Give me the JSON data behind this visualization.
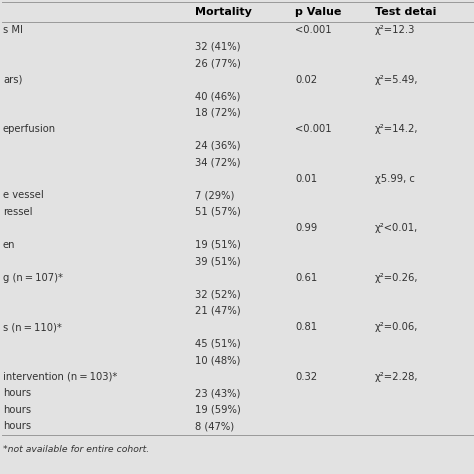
{
  "bg_color": "#d8d8d8",
  "table_bg": "#e2e2e2",
  "header_text_color": "#000000",
  "body_text_color": "#333333",
  "col1_header": "Mortality",
  "col2_header": "p Value",
  "col3_header": "Test detai",
  "rows": [
    {
      "left": "s MI",
      "mortality": "",
      "pvalue": "<0.001",
      "test": "χ²=12.3"
    },
    {
      "left": "",
      "mortality": "32 (41%)",
      "pvalue": "",
      "test": ""
    },
    {
      "left": "",
      "mortality": "26 (77%)",
      "pvalue": "",
      "test": ""
    },
    {
      "left": "ars)",
      "mortality": "",
      "pvalue": "0.02",
      "test": "χ²=5.49,"
    },
    {
      "left": "",
      "mortality": "40 (46%)",
      "pvalue": "",
      "test": ""
    },
    {
      "left": "",
      "mortality": "18 (72%)",
      "pvalue": "",
      "test": ""
    },
    {
      "left": "eperfusion",
      "mortality": "",
      "pvalue": "<0.001",
      "test": "χ²=14.2,"
    },
    {
      "left": "",
      "mortality": "24 (36%)",
      "pvalue": "",
      "test": ""
    },
    {
      "left": "",
      "mortality": "34 (72%)",
      "pvalue": "",
      "test": ""
    },
    {
      "left": "",
      "mortality": "",
      "pvalue": "0.01",
      "test": "χ5.99, c"
    },
    {
      "left": "e vessel",
      "mortality": "7 (29%)",
      "pvalue": "",
      "test": ""
    },
    {
      "left": "ressel",
      "mortality": "51 (57%)",
      "pvalue": "",
      "test": ""
    },
    {
      "left": "",
      "mortality": "",
      "pvalue": "0.99",
      "test": "χ²<0.01,"
    },
    {
      "left": "en",
      "mortality": "19 (51%)",
      "pvalue": "",
      "test": ""
    },
    {
      "left": "",
      "mortality": "39 (51%)",
      "pvalue": "",
      "test": ""
    },
    {
      "left": "g (n = 107)*",
      "mortality": "",
      "pvalue": "0.61",
      "test": "χ²=0.26,"
    },
    {
      "left": "",
      "mortality": "32 (52%)",
      "pvalue": "",
      "test": ""
    },
    {
      "left": "",
      "mortality": "21 (47%)",
      "pvalue": "",
      "test": ""
    },
    {
      "left": "s (n = 110)*",
      "mortality": "",
      "pvalue": "0.81",
      "test": "χ²=0.06,"
    },
    {
      "left": "",
      "mortality": "45 (51%)",
      "pvalue": "",
      "test": ""
    },
    {
      "left": "",
      "mortality": "10 (48%)",
      "pvalue": "",
      "test": ""
    },
    {
      "left": "intervention (n = 103)*",
      "mortality": "",
      "pvalue": "0.32",
      "test": "χ²=2.28,"
    },
    {
      "left": "hours",
      "mortality": "23 (43%)",
      "pvalue": "",
      "test": ""
    },
    {
      "left": "hours",
      "mortality": "19 (59%)",
      "pvalue": "",
      "test": ""
    },
    {
      "left": "hours",
      "mortality": "8 (47%)",
      "pvalue": "",
      "test": ""
    }
  ],
  "footnote": "*not available for entire cohort.",
  "fig_width": 4.74,
  "fig_height": 4.74,
  "font_size": 7.2,
  "header_font_size": 8.0
}
